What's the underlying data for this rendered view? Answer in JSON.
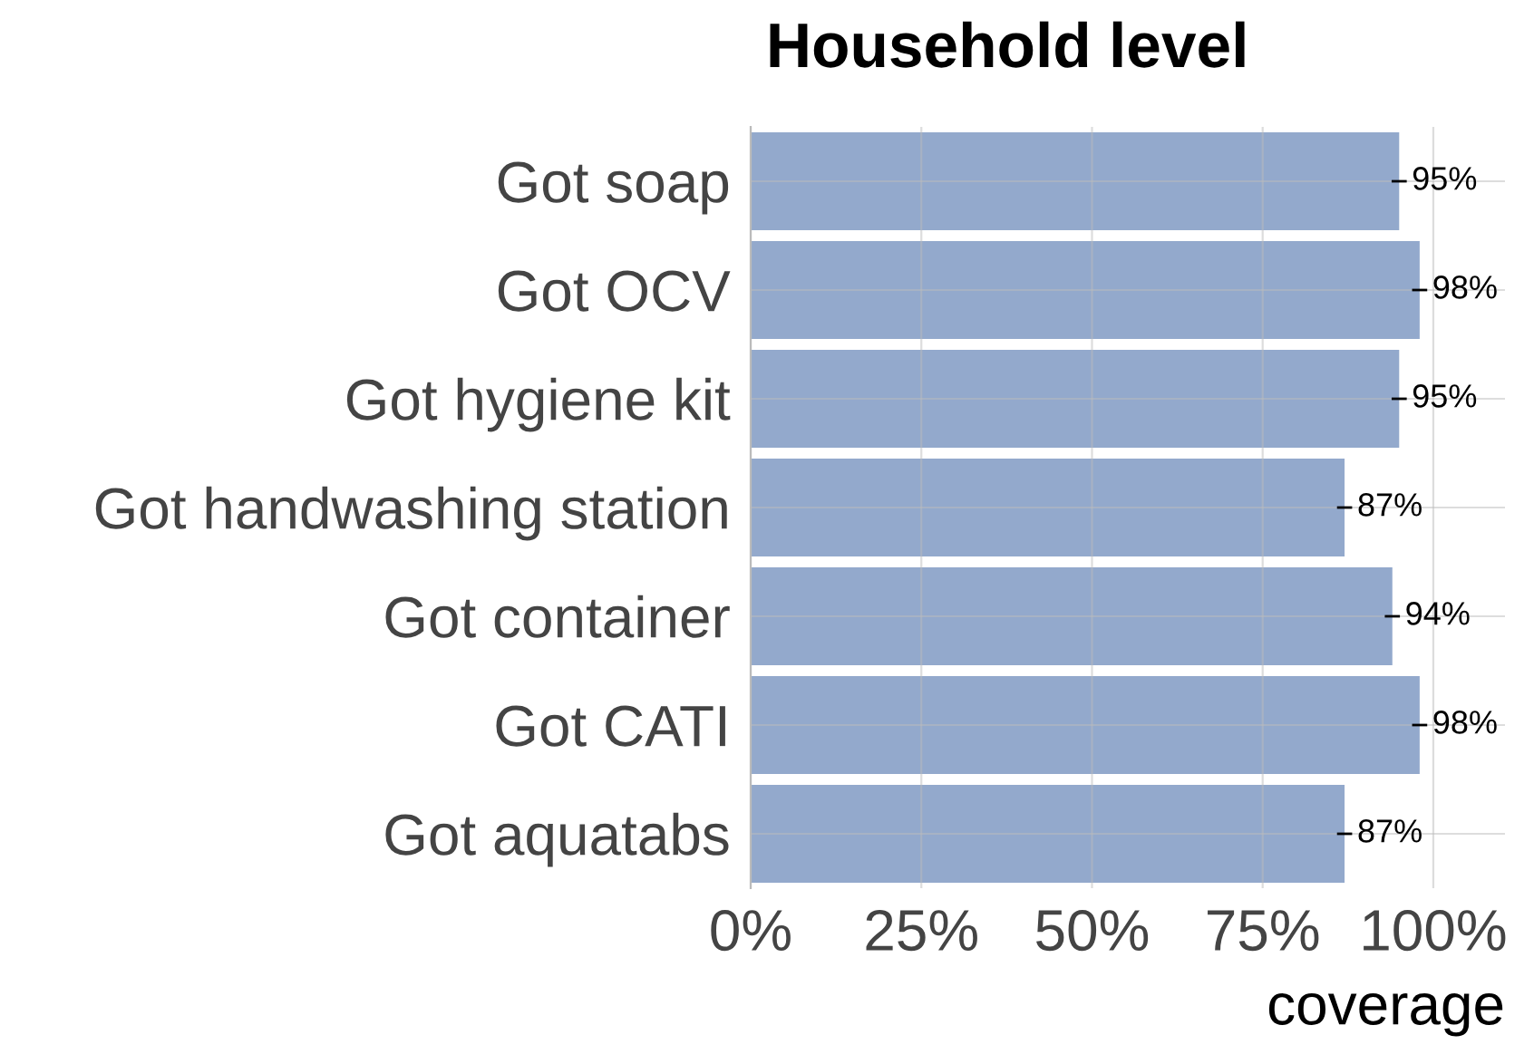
{
  "chart_data": {
    "type": "bar",
    "orientation": "horizontal",
    "title": "Household level",
    "xlabel": "coverage",
    "categories": [
      "Got soap",
      "Got OCV",
      "Got hygiene kit",
      "Got handwashing station",
      "Got container",
      "Got CATI",
      "Got aquatabs"
    ],
    "values": [
      95,
      98,
      95,
      87,
      94,
      98,
      87
    ],
    "value_labels": [
      "95%",
      "98%",
      "95%",
      "87%",
      "94%",
      "98%",
      "87%"
    ],
    "color": "#93a9cc",
    "xlim": [
      0,
      110.5
    ],
    "xticks": [
      {
        "value": 0,
        "label": "0%"
      },
      {
        "value": 25,
        "label": "25%"
      },
      {
        "value": 50,
        "label": "50%"
      },
      {
        "value": 75,
        "label": "75%"
      },
      {
        "value": 100,
        "label": "100%"
      }
    ],
    "grid": true
  }
}
